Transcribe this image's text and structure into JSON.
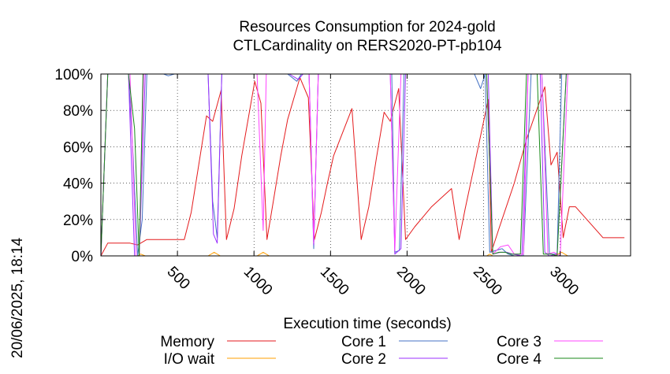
{
  "chart_data": {
    "type": "line",
    "title_line1": "Resources Consumption for 2024-gold",
    "title_line2": "CTLCardinality on RERS2020-PT-pb104",
    "xlabel": "Execution time (seconds)",
    "ylabel": "",
    "side_label": "20/06/2025, 18:14",
    "xlim": [
      0,
      3460
    ],
    "ylim": [
      0,
      100
    ],
    "xticks": [
      500,
      1000,
      1500,
      2000,
      2500,
      3000
    ],
    "yticks": [
      0,
      20,
      40,
      60,
      80,
      100
    ],
    "ytick_labels": [
      "0%",
      "20%",
      "40%",
      "60%",
      "80%",
      "100%"
    ],
    "grid": true,
    "legend_position": "bottom",
    "series": [
      {
        "name": "Memory",
        "color": "#e41a1c",
        "points": [
          [
            0,
            0
          ],
          [
            45,
            7
          ],
          [
            120,
            7
          ],
          [
            190,
            7
          ],
          [
            240,
            6
          ],
          [
            300,
            9
          ],
          [
            330,
            9
          ],
          [
            400,
            9
          ],
          [
            500,
            9
          ],
          [
            545,
            9
          ],
          [
            590,
            24
          ],
          [
            690,
            77
          ],
          [
            730,
            74
          ],
          [
            785,
            91
          ],
          [
            820,
            9
          ],
          [
            870,
            26
          ],
          [
            920,
            55
          ],
          [
            1005,
            96
          ],
          [
            1045,
            84
          ],
          [
            1085,
            9
          ],
          [
            1130,
            32
          ],
          [
            1175,
            55
          ],
          [
            1220,
            75
          ],
          [
            1300,
            98
          ],
          [
            1355,
            87
          ],
          [
            1395,
            9
          ],
          [
            1440,
            24
          ],
          [
            1480,
            40
          ],
          [
            1520,
            55
          ],
          [
            1640,
            81
          ],
          [
            1700,
            9
          ],
          [
            1750,
            27
          ],
          [
            1800,
            54
          ],
          [
            1850,
            79
          ],
          [
            1890,
            74
          ],
          [
            1945,
            92
          ],
          [
            1990,
            9
          ],
          [
            2050,
            16
          ],
          [
            2110,
            22
          ],
          [
            2160,
            27
          ],
          [
            2290,
            37
          ],
          [
            2340,
            9
          ],
          [
            2380,
            26
          ],
          [
            2430,
            46
          ],
          [
            2480,
            66
          ],
          [
            2530,
            86
          ],
          [
            2550,
            2
          ],
          [
            2600,
            15
          ],
          [
            2700,
            40
          ],
          [
            2780,
            64
          ],
          [
            2900,
            93
          ],
          [
            2940,
            50
          ],
          [
            2980,
            57
          ],
          [
            3020,
            10
          ],
          [
            3060,
            27
          ],
          [
            3100,
            27
          ],
          [
            3280,
            10
          ],
          [
            3310,
            10
          ],
          [
            3420,
            10
          ]
        ]
      },
      {
        "name": "I/O wait",
        "color": "#ff9f00",
        "points": [
          [
            0,
            0
          ],
          [
            240,
            0
          ],
          [
            260,
            1
          ],
          [
            290,
            0
          ],
          [
            700,
            0
          ],
          [
            740,
            2
          ],
          [
            780,
            0
          ],
          [
            1020,
            0
          ],
          [
            1060,
            2
          ],
          [
            1100,
            0
          ],
          [
            2520,
            0
          ],
          [
            2540,
            1
          ],
          [
            2560,
            0
          ],
          [
            2960,
            0
          ],
          [
            3010,
            2
          ],
          [
            3050,
            0
          ],
          [
            3420,
            0
          ]
        ]
      },
      {
        "name": "Core 1",
        "color": "#4472c4",
        "points": [
          [
            0,
            0
          ],
          [
            45,
            100
          ],
          [
            100,
            100
          ],
          [
            180,
            100
          ],
          [
            210,
            55
          ],
          [
            240,
            0
          ],
          [
            270,
            20
          ],
          [
            300,
            100
          ],
          [
            350,
            100
          ],
          [
            410,
            100
          ],
          [
            440,
            99
          ],
          [
            480,
            100
          ],
          [
            520,
            100
          ],
          [
            700,
            100
          ],
          [
            730,
            30
          ],
          [
            760,
            10
          ],
          [
            790,
            100
          ],
          [
            1000,
            100
          ],
          [
            1220,
            100
          ],
          [
            1280,
            96
          ],
          [
            1310,
            100
          ],
          [
            1360,
            100
          ],
          [
            1390,
            4
          ],
          [
            1420,
            100
          ],
          [
            1900,
            100
          ],
          [
            1920,
            2
          ],
          [
            1950,
            3
          ],
          [
            1980,
            100
          ],
          [
            2440,
            100
          ],
          [
            2480,
            92
          ],
          [
            2510,
            100
          ],
          [
            2540,
            2
          ],
          [
            2580,
            3
          ],
          [
            2620,
            4
          ],
          [
            2660,
            1
          ],
          [
            2700,
            0
          ],
          [
            2760,
            0
          ],
          [
            2810,
            100
          ],
          [
            2880,
            100
          ],
          [
            2930,
            1
          ],
          [
            2980,
            1
          ],
          [
            3010,
            100
          ],
          [
            3060,
            100
          ],
          [
            3420,
            100
          ]
        ]
      },
      {
        "name": "Core 2",
        "color": "#9b30ff",
        "points": [
          [
            0,
            0
          ],
          [
            45,
            100
          ],
          [
            100,
            100
          ],
          [
            180,
            100
          ],
          [
            220,
            0
          ],
          [
            250,
            0
          ],
          [
            290,
            100
          ],
          [
            560,
            100
          ],
          [
            700,
            100
          ],
          [
            735,
            12
          ],
          [
            760,
            7
          ],
          [
            790,
            100
          ],
          [
            1000,
            100
          ],
          [
            1230,
            100
          ],
          [
            1290,
            97
          ],
          [
            1320,
            100
          ],
          [
            1360,
            100
          ],
          [
            1390,
            6
          ],
          [
            1420,
            100
          ],
          [
            1890,
            100
          ],
          [
            1920,
            1
          ],
          [
            1960,
            4
          ],
          [
            1990,
            100
          ],
          [
            2530,
            100
          ],
          [
            2560,
            1
          ],
          [
            2610,
            2
          ],
          [
            2650,
            2
          ],
          [
            2690,
            1
          ],
          [
            2750,
            0
          ],
          [
            2790,
            100
          ],
          [
            2870,
            100
          ],
          [
            2900,
            2
          ],
          [
            2930,
            0
          ],
          [
            2980,
            1
          ],
          [
            3040,
            100
          ],
          [
            3420,
            100
          ]
        ]
      },
      {
        "name": "Core 3",
        "color": "#ff44ff",
        "points": [
          [
            0,
            0
          ],
          [
            45,
            100
          ],
          [
            110,
            100
          ],
          [
            190,
            100
          ],
          [
            230,
            0
          ],
          [
            250,
            0
          ],
          [
            280,
            100
          ],
          [
            560,
            100
          ],
          [
            700,
            100
          ],
          [
            730,
            100
          ],
          [
            760,
            100
          ],
          [
            1020,
            100
          ],
          [
            1060,
            14
          ],
          [
            1080,
            100
          ],
          [
            1360,
            100
          ],
          [
            1390,
            7
          ],
          [
            1420,
            100
          ],
          [
            1890,
            100
          ],
          [
            1920,
            3
          ],
          [
            1960,
            100
          ],
          [
            2520,
            100
          ],
          [
            2560,
            1
          ],
          [
            2610,
            5
          ],
          [
            2660,
            6
          ],
          [
            2700,
            1
          ],
          [
            2760,
            1
          ],
          [
            2790,
            100
          ],
          [
            2880,
            100
          ],
          [
            2920,
            1
          ],
          [
            2960,
            2
          ],
          [
            3000,
            0
          ],
          [
            3050,
            100
          ],
          [
            3080,
            100
          ],
          [
            3420,
            100
          ]
        ]
      },
      {
        "name": "Core 4",
        "color": "#1a8a1a",
        "points": [
          [
            0,
            0
          ],
          [
            45,
            100
          ],
          [
            100,
            100
          ],
          [
            180,
            100
          ],
          [
            220,
            70
          ],
          [
            250,
            0
          ],
          [
            275,
            100
          ],
          [
            560,
            100
          ],
          [
            1000,
            100
          ],
          [
            1890,
            100
          ],
          [
            2520,
            100
          ],
          [
            2560,
            1
          ],
          [
            2600,
            2
          ],
          [
            2640,
            2
          ],
          [
            2680,
            1
          ],
          [
            2740,
            1
          ],
          [
            2780,
            100
          ],
          [
            2850,
            100
          ],
          [
            2890,
            1
          ],
          [
            2940,
            1
          ],
          [
            2980,
            0
          ],
          [
            3040,
            100
          ],
          [
            3420,
            100
          ]
        ]
      }
    ]
  }
}
